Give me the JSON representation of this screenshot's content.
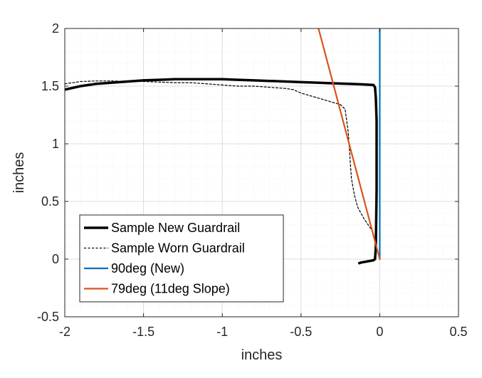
{
  "chart_data": {
    "type": "line",
    "title": "",
    "xlabel": "inches",
    "ylabel": "inches",
    "xlim": [
      -2,
      0.5
    ],
    "ylim": [
      -0.5,
      2
    ],
    "grid": true,
    "xticks": [
      -2,
      -1.5,
      -1,
      -0.5,
      0,
      0.5
    ],
    "xtick_labels": [
      "-2",
      "-1.5",
      "-1",
      "-0.5",
      "0",
      "0.5"
    ],
    "yticks": [
      -0.5,
      0,
      0.5,
      1,
      1.5,
      2
    ],
    "ytick_labels": [
      "-0.5",
      "0",
      "0.5",
      "1",
      "1.5",
      "2"
    ],
    "legend_position": "bottom-left",
    "series": [
      {
        "name": "Sample New Guardrail",
        "color": "#000000",
        "style": "solid-thick",
        "x": [
          -2.0,
          -1.9,
          -1.8,
          -1.7,
          -1.6,
          -1.5,
          -1.4,
          -1.3,
          -1.2,
          -1.1,
          -1.0,
          -0.9,
          -0.8,
          -0.7,
          -0.6,
          -0.5,
          -0.4,
          -0.3,
          -0.2,
          -0.1,
          -0.04,
          -0.03,
          -0.025,
          -0.02,
          -0.02,
          -0.025,
          -0.03,
          -0.04,
          -0.06,
          -0.08,
          -0.1,
          -0.12,
          -0.13
        ],
        "y": [
          1.47,
          1.5,
          1.52,
          1.53,
          1.54,
          1.55,
          1.555,
          1.56,
          1.56,
          1.56,
          1.56,
          1.555,
          1.55,
          1.545,
          1.54,
          1.535,
          1.53,
          1.525,
          1.52,
          1.515,
          1.51,
          1.49,
          1.4,
          1.2,
          0.6,
          0.1,
          0.0,
          -0.01,
          -0.015,
          -0.02,
          -0.025,
          -0.03,
          -0.035
        ]
      },
      {
        "name": "Sample Worn Guardrail",
        "color": "#000000",
        "style": "dashed-thin",
        "x": [
          -2.0,
          -1.9,
          -1.8,
          -1.7,
          -1.6,
          -1.5,
          -1.4,
          -1.3,
          -1.2,
          -1.1,
          -1.0,
          -0.9,
          -0.8,
          -0.7,
          -0.6,
          -0.55,
          -0.5,
          -0.45,
          -0.4,
          -0.35,
          -0.3,
          -0.25,
          -0.22,
          -0.21,
          -0.2,
          -0.19,
          -0.18,
          -0.16,
          -0.14,
          -0.1,
          -0.05,
          -0.02,
          0.0
        ],
        "y": [
          1.52,
          1.54,
          1.545,
          1.545,
          1.54,
          1.54,
          1.535,
          1.53,
          1.53,
          1.52,
          1.51,
          1.5,
          1.5,
          1.49,
          1.48,
          1.47,
          1.44,
          1.42,
          1.4,
          1.38,
          1.36,
          1.34,
          1.3,
          1.2,
          1.1,
          0.9,
          0.7,
          0.55,
          0.45,
          0.35,
          0.25,
          0.1,
          0.0
        ]
      },
      {
        "name": "90deg (New)",
        "color": "#0072BD",
        "style": "solid",
        "x": [
          0,
          0
        ],
        "y": [
          0,
          2
        ]
      },
      {
        "name": "79deg (11deg Slope)",
        "color": "#D95319",
        "style": "solid",
        "x": [
          0,
          -0.389
        ],
        "y": [
          0,
          2
        ]
      }
    ]
  }
}
